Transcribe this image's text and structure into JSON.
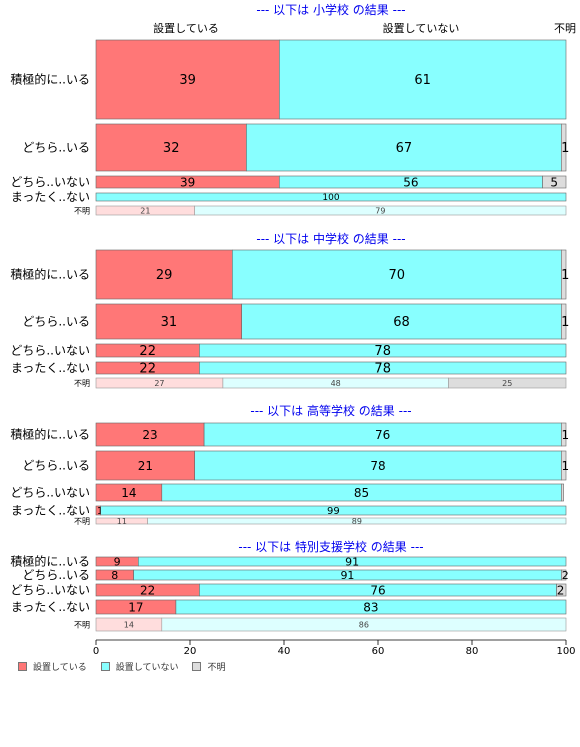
{
  "chart_data": {
    "type": "bar",
    "orientation": "horizontal-stacked-100",
    "xlim": [
      0,
      100
    ],
    "xticks": [
      0,
      20,
      40,
      60,
      80,
      100
    ],
    "col_headers": [
      "設置している",
      "設置していない",
      "不明"
    ],
    "series_names": [
      "設置している",
      "設置していない",
      "不明"
    ],
    "colors": [
      "#FF7777",
      "#88FFFF",
      "#DDDDDD"
    ],
    "faded_colors": [
      "#FFDDDD",
      "#DDFFFF",
      "#DDDDDD"
    ],
    "legend_position": "bottom-left",
    "panels": [
      {
        "title": "--- 以下は 小学校 の結果 ---",
        "rows": [
          {
            "label": "積極的に..いる",
            "values": [
              39,
              61,
              0.4
            ],
            "labels": [
              "39",
              "61",
              ""
            ]
          },
          {
            "label": "どちら..いる",
            "values": [
              32,
              67,
              1
            ],
            "labels": [
              "32",
              "67",
              "1"
            ]
          },
          {
            "label": "どちら..いない",
            "values": [
              39,
              56,
              5
            ],
            "labels": [
              "39",
              "56",
              "5"
            ]
          },
          {
            "label": "まったく..ない",
            "values": [
              0,
              100,
              0
            ],
            "labels": [
              "",
              "100",
              ""
            ]
          },
          {
            "label": "不明",
            "values": [
              21,
              79,
              0
            ],
            "labels": [
              "21",
              "79",
              ""
            ]
          }
        ]
      },
      {
        "title": "--- 以下は 中学校 の結果 ---",
        "rows": [
          {
            "label": "積極的に..いる",
            "values": [
              29,
              70,
              1
            ],
            "labels": [
              "29",
              "70",
              "1"
            ]
          },
          {
            "label": "どちら..いる",
            "values": [
              31,
              68,
              1
            ],
            "labels": [
              "31",
              "68",
              "1"
            ]
          },
          {
            "label": "どちら..いない",
            "values": [
              22,
              78,
              0
            ],
            "labels": [
              "22",
              "78",
              ""
            ]
          },
          {
            "label": "まったく..ない",
            "values": [
              22,
              78,
              0
            ],
            "labels": [
              "22",
              "78",
              ""
            ]
          },
          {
            "label": "不明",
            "values": [
              27,
              48,
              25
            ],
            "labels": [
              "27",
              "48",
              "25"
            ]
          }
        ]
      },
      {
        "title": "--- 以下は 高等学校 の結果 ---",
        "rows": [
          {
            "label": "積極的に..いる",
            "values": [
              23,
              76,
              1
            ],
            "labels": [
              "23",
              "76",
              "1"
            ]
          },
          {
            "label": "どちら..いる",
            "values": [
              21,
              78,
              1
            ],
            "labels": [
              "21",
              "78",
              "1"
            ]
          },
          {
            "label": "どちら..いない",
            "values": [
              14,
              85,
              0.5
            ],
            "labels": [
              "14",
              "85",
              ""
            ]
          },
          {
            "label": "まったく..ない",
            "values": [
              1,
              99,
              0
            ],
            "labels": [
              "1",
              "99",
              ""
            ]
          },
          {
            "label": "不明",
            "values": [
              11,
              89,
              0
            ],
            "labels": [
              "11",
              "89",
              ""
            ]
          }
        ]
      },
      {
        "title": "--- 以下は 特別支援学校 の結果 ---",
        "rows": [
          {
            "label": "積極的に..いる",
            "values": [
              9,
              91,
              0
            ],
            "labels": [
              "9",
              "91",
              ""
            ]
          },
          {
            "label": "どちら..いる",
            "values": [
              8,
              91,
              2
            ],
            "labels": [
              "8",
              "91",
              "2"
            ]
          },
          {
            "label": "どちら..いない",
            "values": [
              22,
              76,
              2
            ],
            "labels": [
              "22",
              "76",
              "2"
            ]
          },
          {
            "label": "まったく..ない",
            "values": [
              17,
              83,
              0
            ],
            "labels": [
              "17",
              "83",
              ""
            ]
          },
          {
            "label": "不明",
            "values": [
              14,
              86,
              0
            ],
            "labels": [
              "14",
              "86",
              ""
            ]
          }
        ]
      }
    ]
  }
}
